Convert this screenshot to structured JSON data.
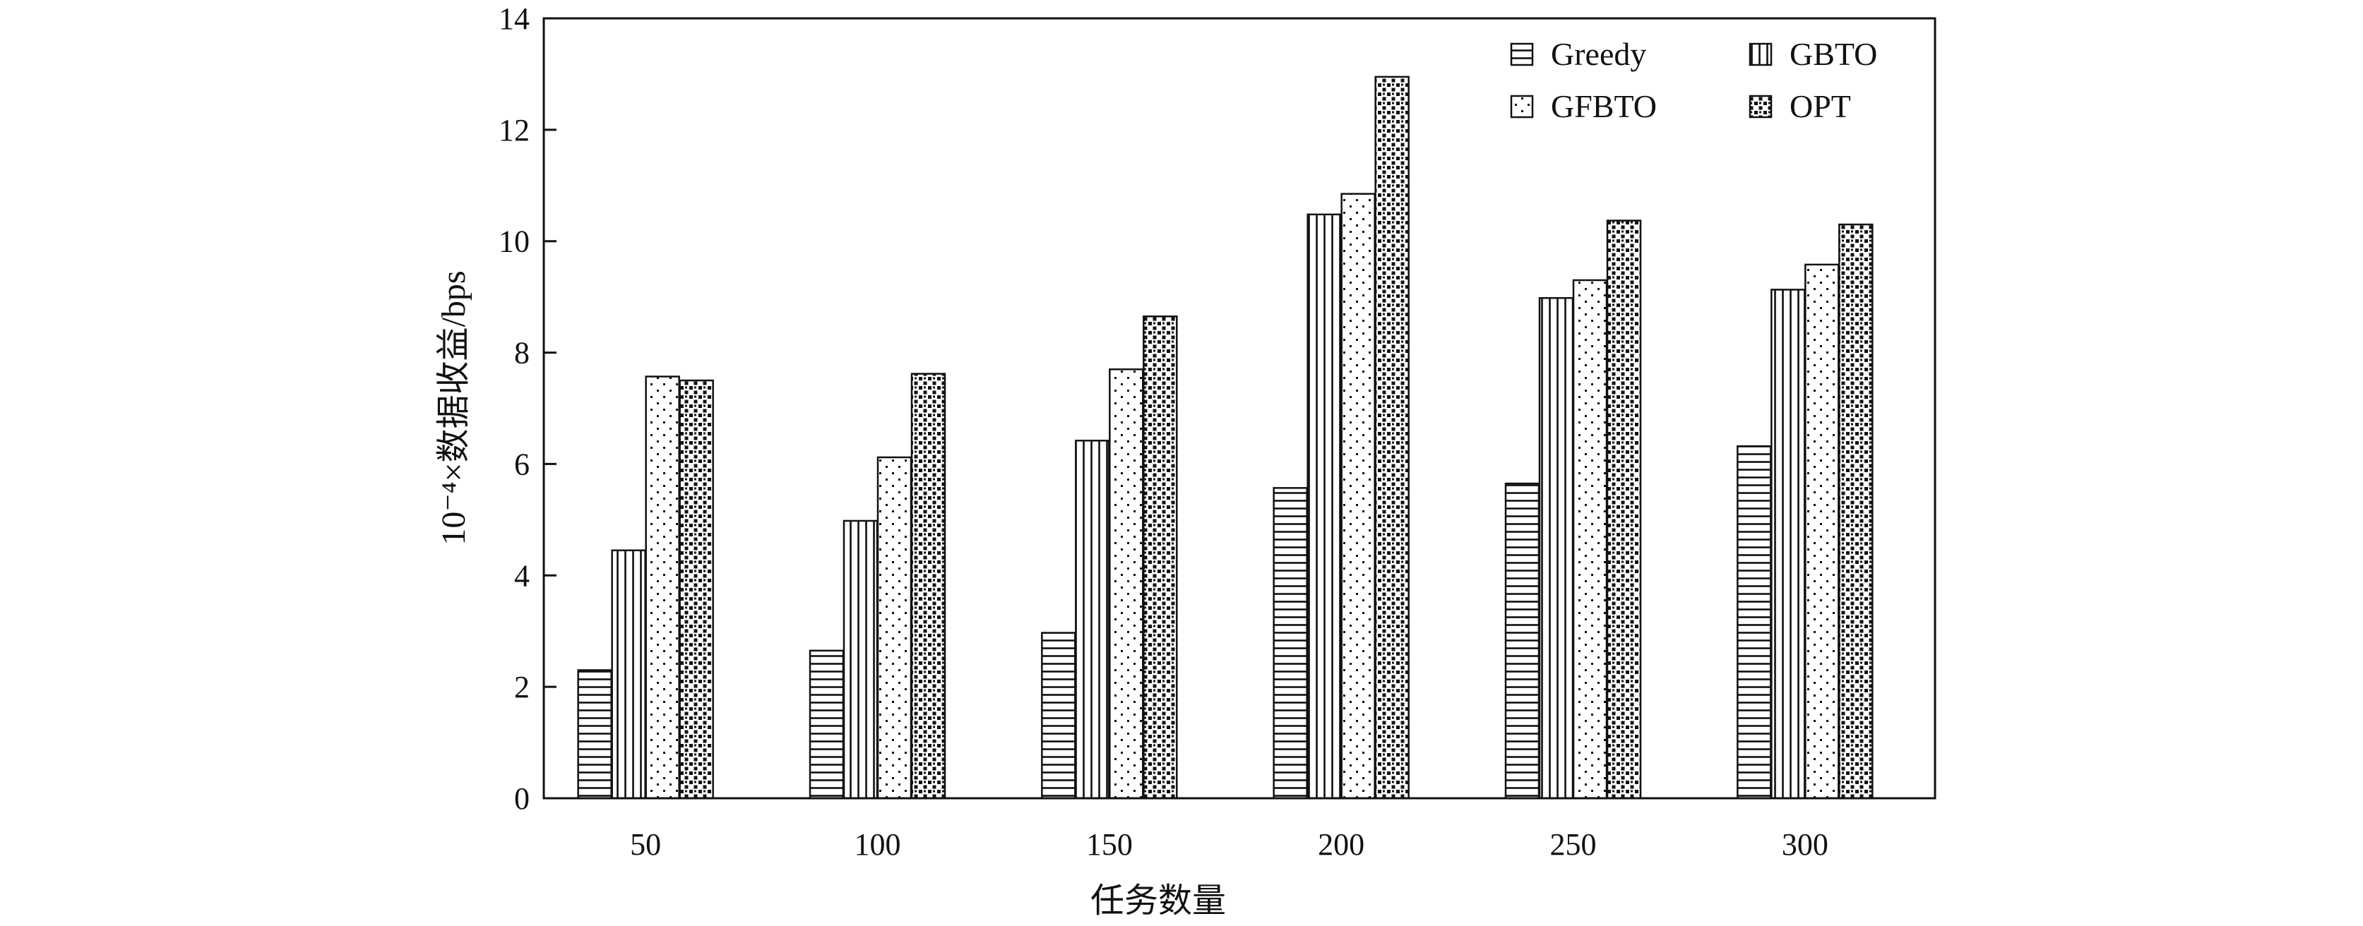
{
  "chart_data": {
    "type": "bar",
    "title": "",
    "xlabel": "任务数量",
    "ylabel": "10⁻⁴×数据收益/bps",
    "categories": [
      "50",
      "100",
      "150",
      "200",
      "250",
      "300"
    ],
    "ylim": [
      0,
      14
    ],
    "yticks": [
      0,
      2,
      4,
      6,
      8,
      10,
      12,
      14
    ],
    "grid": false,
    "legend_position": "top-right",
    "series": [
      {
        "name": "Greedy",
        "pattern": "horizontal-lines",
        "values": [
          2.3,
          2.65,
          2.97,
          5.57,
          5.65,
          6.32
        ]
      },
      {
        "name": "GBTO",
        "pattern": "vertical-lines",
        "values": [
          4.45,
          4.98,
          6.42,
          10.48,
          8.98,
          9.13
        ]
      },
      {
        "name": "GFBTO",
        "pattern": "sparse-dots",
        "values": [
          7.57,
          6.12,
          7.7,
          10.85,
          9.3,
          9.58
        ]
      },
      {
        "name": "OPT",
        "pattern": "dense-dots",
        "values": [
          7.5,
          7.62,
          8.65,
          12.95,
          10.37,
          10.3
        ]
      }
    ],
    "colors": {
      "ink": "#111111",
      "background": "#ffffff"
    }
  }
}
